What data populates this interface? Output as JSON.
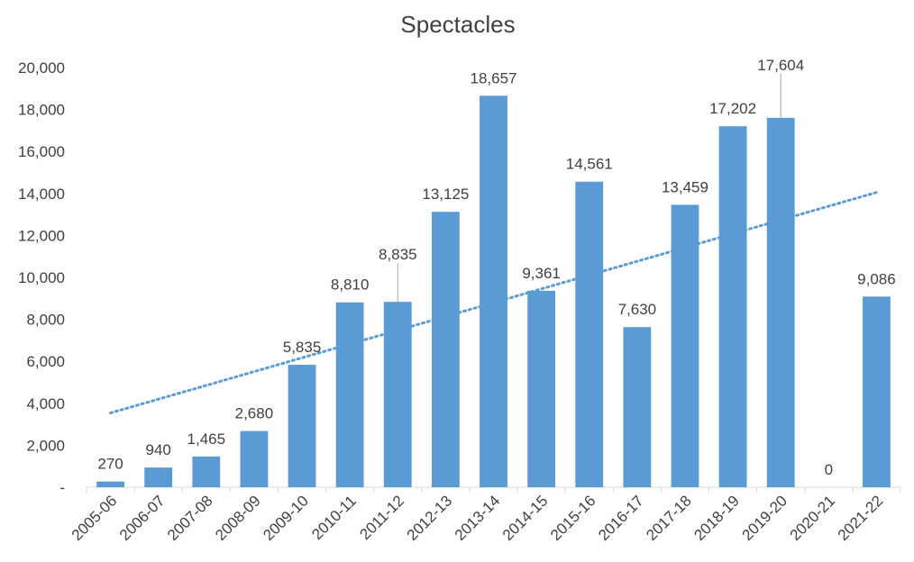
{
  "chart_data": {
    "type": "bar",
    "title": "Spectacles",
    "xlabel": "",
    "ylabel": "",
    "categories": [
      "2005-06",
      "2006-07",
      "2007-08",
      "2008-09",
      "2009-10",
      "2010-11",
      "2011-12",
      "2012-13",
      "2013-14",
      "2014-15",
      "2015-16",
      "2016-17",
      "2017-18",
      "2018-19",
      "2019-20",
      "2020-21",
      "2021-22"
    ],
    "values": [
      270,
      940,
      1465,
      2680,
      5835,
      8810,
      8835,
      13125,
      18657,
      9361,
      14561,
      7630,
      13459,
      17202,
      17604,
      0,
      9086
    ],
    "data_labels": [
      "270",
      "940",
      "1,465",
      "2,680",
      "5,835",
      "8,810",
      "8,835",
      "13,125",
      "18,657",
      "9,361",
      "14,561",
      "7,630",
      "13,459",
      "17,202",
      "17,604",
      "0",
      "9,086"
    ],
    "ylim": [
      0,
      20000
    ],
    "yticks": [
      0,
      2000,
      4000,
      6000,
      8000,
      10000,
      12000,
      14000,
      16000,
      18000,
      20000
    ],
    "ytick_labels": [
      "-",
      "2,000",
      "4,000",
      "6,000",
      "8,000",
      "10,000",
      "12,000",
      "14,000",
      "16,000",
      "18,000",
      "20,000"
    ],
    "trendline": {
      "type": "linear",
      "style": "dotted"
    },
    "grid": false,
    "legend": "none",
    "bar_color": "#5B9BD5",
    "trend_color": "#5B9BD5"
  }
}
